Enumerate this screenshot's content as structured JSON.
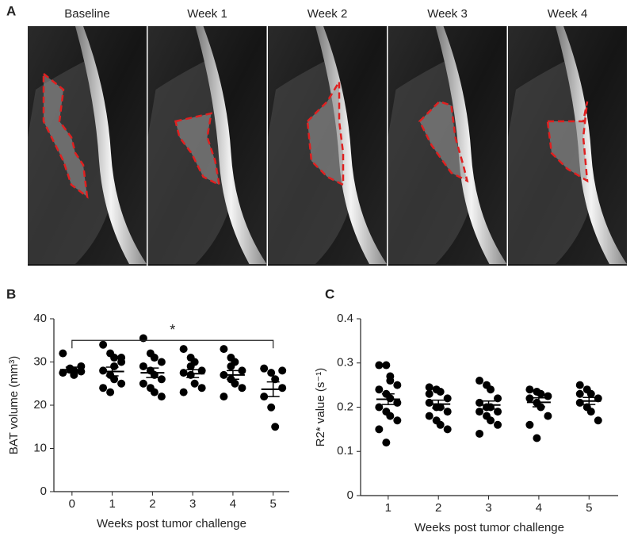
{
  "figure": {
    "panel_labels": [
      "A",
      "B",
      "C"
    ],
    "image_labels": [
      "Baseline",
      "Week 1",
      "Week 2",
      "Week 3",
      "Week 4"
    ]
  },
  "chart_data": [
    {
      "type": "dotplot",
      "ylabel": "BAT volume (mm³)",
      "xlabel": "Weeks post tumor challenge",
      "x": [
        0,
        1,
        2,
        3,
        4,
        5
      ],
      "xlim": [
        -0.45,
        5.4
      ],
      "xticks": [
        0,
        1,
        2,
        3,
        4,
        5
      ],
      "ylim": [
        0,
        40
      ],
      "yticks": [
        0,
        10,
        20,
        30,
        40
      ],
      "color": "#000000",
      "points": [
        [
          32,
          28.5,
          28,
          27.8,
          27.5,
          28.2,
          27,
          29
        ],
        [
          34,
          32,
          31,
          30,
          28,
          27,
          26,
          25,
          24,
          23,
          29,
          31
        ],
        [
          35.5,
          32,
          31,
          30,
          29,
          28,
          27,
          26,
          25,
          24,
          23,
          22
        ],
        [
          33,
          31,
          30,
          28,
          27.5,
          27,
          25,
          24,
          23,
          29
        ],
        [
          33,
          31,
          30,
          28,
          27,
          26,
          25,
          24,
          22,
          29
        ],
        [
          28.5,
          27.5,
          26,
          24,
          22,
          19.5,
          15,
          28
        ]
      ],
      "means": [
        28.2,
        27.8,
        27.5,
        27.3,
        27.0,
        23.7
      ],
      "sem": [
        0.6,
        1.0,
        1.1,
        0.9,
        1.0,
        1.7
      ],
      "bracket": {
        "x": [
          0,
          5
        ],
        "y": 35,
        "label": "*"
      }
    },
    {
      "type": "dotplot",
      "ylabel": "R2* value (s⁻¹)",
      "xlabel": "Weeks post tumor challenge",
      "x": [
        1,
        2,
        3,
        4,
        5
      ],
      "xlim": [
        0.45,
        5.58
      ],
      "xticks": [
        1,
        2,
        3,
        4,
        5
      ],
      "ylim": [
        0,
        0.4
      ],
      "yticks": [
        0,
        0.1,
        0.2,
        0.3,
        0.4
      ],
      "color": "#000000",
      "points": [
        [
          0.295,
          0.295,
          0.27,
          0.25,
          0.24,
          0.23,
          0.22,
          0.21,
          0.2,
          0.19,
          0.18,
          0.17,
          0.15,
          0.12,
          0.26
        ],
        [
          0.245,
          0.24,
          0.235,
          0.22,
          0.21,
          0.2,
          0.2,
          0.19,
          0.18,
          0.17,
          0.16,
          0.15,
          0.23
        ],
        [
          0.26,
          0.25,
          0.24,
          0.22,
          0.21,
          0.2,
          0.2,
          0.19,
          0.19,
          0.18,
          0.17,
          0.16,
          0.14
        ],
        [
          0.24,
          0.235,
          0.23,
          0.225,
          0.22,
          0.21,
          0.2,
          0.18,
          0.16,
          0.13
        ],
        [
          0.25,
          0.24,
          0.23,
          0.22,
          0.21,
          0.2,
          0.19,
          0.17,
          0.23
        ]
      ],
      "means": [
        0.218,
        0.207,
        0.205,
        0.211,
        0.214
      ],
      "sem": [
        0.012,
        0.009,
        0.009,
        0.01,
        0.008
      ]
    }
  ]
}
